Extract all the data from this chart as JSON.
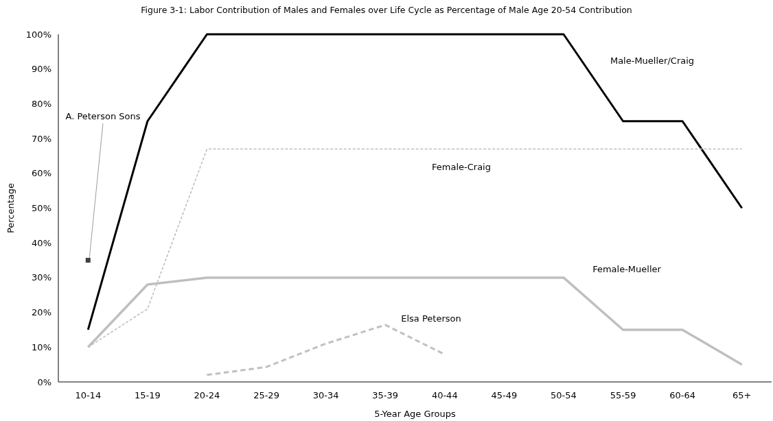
{
  "chart_data": {
    "type": "line",
    "title": "Figure 3-1: Labor Contribution  of Males and Females over Life Cycle as Percentage of Male Age 20-54 Contribution",
    "xlabel": "5-Year Age Groups",
    "ylabel": "Percentage",
    "categories": [
      "10-14",
      "15-19",
      "20-24",
      "25-29",
      "30-34",
      "35-39",
      "40-44",
      "45-49",
      "50-54",
      "55-59",
      "60-64",
      "65+"
    ],
    "ylim": [
      0,
      100
    ],
    "yticks": [
      {
        "value": 0,
        "label": "0%"
      },
      {
        "value": 10,
        "label": "10%"
      },
      {
        "value": 20,
        "label": "20%"
      },
      {
        "value": 30,
        "label": "30%"
      },
      {
        "value": 40,
        "label": "40%"
      },
      {
        "value": 50,
        "label": "50%"
      },
      {
        "value": 60,
        "label": "60%"
      },
      {
        "value": 70,
        "label": "70%"
      },
      {
        "value": 80,
        "label": "80%"
      },
      {
        "value": 90,
        "label": "90%"
      },
      {
        "value": 100,
        "label": "100%"
      }
    ],
    "grid": false,
    "legend": false,
    "series": [
      {
        "name": "Male-Mueller/Craig",
        "color": "#000000",
        "line_style": "solid",
        "values": [
          15,
          75,
          100,
          100,
          100,
          100,
          100,
          100,
          100,
          75,
          75,
          50
        ]
      },
      {
        "name": "Female-Craig",
        "color": "#bfbfbf",
        "line_style": "dashed",
        "values": [
          10,
          21,
          67,
          67,
          67,
          67,
          67,
          67,
          67,
          67,
          67,
          67
        ]
      },
      {
        "name": "Female-Mueller",
        "color": "#bfbfbf",
        "line_style": "solid",
        "values": [
          10,
          28,
          30,
          30,
          30,
          30,
          30,
          30,
          30,
          15,
          15,
          5
        ]
      },
      {
        "name": "Elsa Peterson",
        "color": "#c0c0c0",
        "line_style": "dashed",
        "values": [
          null,
          null,
          2,
          4.3,
          11,
          16.4,
          7.9,
          null,
          null,
          null,
          null,
          null
        ]
      },
      {
        "name": "A. Peterson Sons",
        "type": "scatter",
        "color": "#404040",
        "marker": "square",
        "values": [
          35,
          null,
          null,
          null,
          null,
          null,
          null,
          null,
          null,
          null,
          null,
          null
        ]
      }
    ]
  }
}
